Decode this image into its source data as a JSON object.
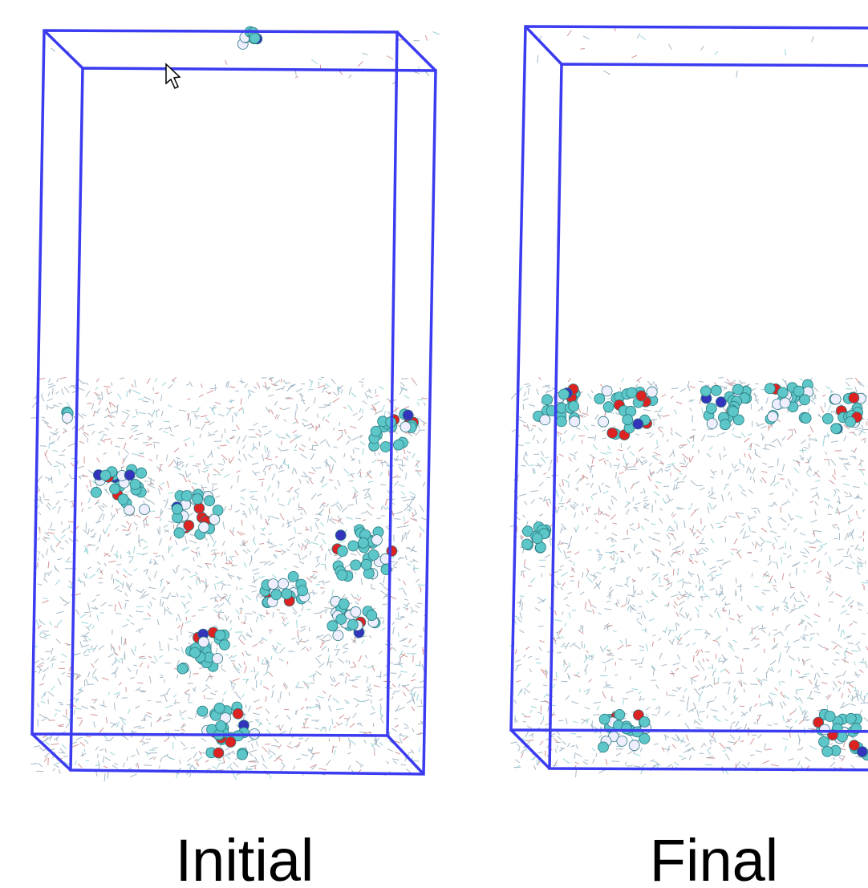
{
  "panels": [
    {
      "label": "Initial"
    },
    {
      "label": "Final"
    }
  ]
}
